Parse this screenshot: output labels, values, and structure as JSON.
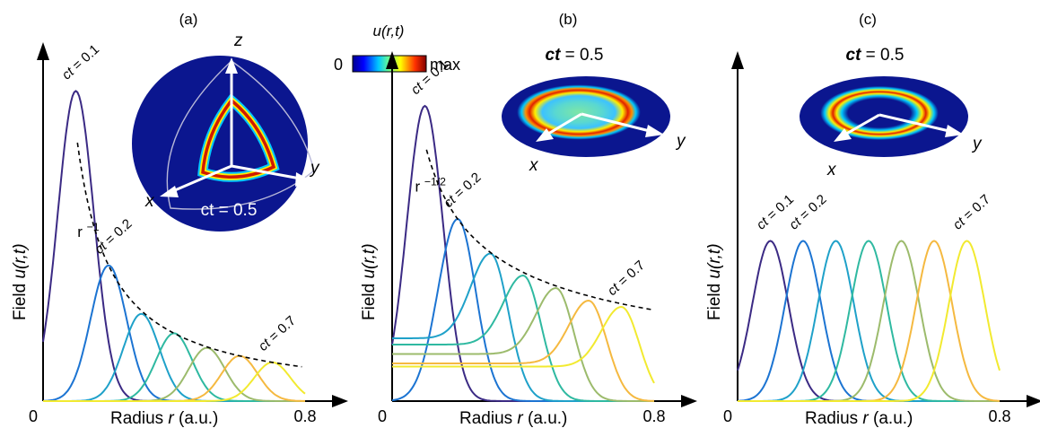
{
  "colors": {
    "ct01": "#3b2a84",
    "ct02": "#1c74d2",
    "ct03": "#1fa1c9",
    "ct04": "#2fb9a1",
    "ct05": "#9cbb6c",
    "ct06": "#f5b940",
    "ct07": "#f2ea30",
    "envelope": "#000000",
    "disk_bg": "#0b168f"
  },
  "colorbar": {
    "title": "u(r,t)",
    "min_label": "0",
    "max_label": "max"
  },
  "chart_data": [
    {
      "panel_label": "(a)",
      "type": "line",
      "xlabel_prefix": "Radius ",
      "xlabel_var": "r",
      "xlabel_suffix": " (a.u.)",
      "ylabel_prefix": "Field ",
      "ylabel_var": "u(r,t)",
      "x_tick_labels": [
        "0",
        "0.8"
      ],
      "xlim": [
        0,
        0.8
      ],
      "ylim": [
        0,
        1.0
      ],
      "series": [
        {
          "ct": 0.1,
          "label": "ct = 0.1",
          "amplitude": 0.96,
          "floor": 0.0
        },
        {
          "ct": 0.2,
          "label": "ct = 0.2",
          "amplitude": 0.42,
          "floor": 0.0
        },
        {
          "ct": 0.3,
          "amplitude": 0.27,
          "floor": 0.0
        },
        {
          "ct": 0.4,
          "amplitude": 0.21,
          "floor": 0.0
        },
        {
          "ct": 0.5,
          "amplitude": 0.165,
          "floor": 0.0
        },
        {
          "ct": 0.6,
          "amplitude": 0.14,
          "floor": 0.0
        },
        {
          "ct": 0.7,
          "label": "ct = 0.7",
          "amplitude": 0.12,
          "floor": 0.0
        }
      ],
      "envelope": {
        "label": "r",
        "exponent": "−1"
      },
      "inset": {
        "type": "sphere",
        "caption": "ct = 0.5",
        "axes": [
          "x",
          "y",
          "z"
        ]
      }
    },
    {
      "panel_label": "(b)",
      "type": "line",
      "xlabel_prefix": "Radius ",
      "xlabel_var": "r",
      "xlabel_suffix": " (a.u.)",
      "ylabel_prefix": "Field ",
      "ylabel_var": "u(r,t)",
      "x_tick_labels": [
        "0",
        "0.8"
      ],
      "xlim": [
        0,
        0.8
      ],
      "ylim": [
        0,
        1.0
      ],
      "series": [
        {
          "ct": 0.1,
          "label": "ct = 0.1",
          "amplitude": 0.94,
          "floor": 0.0
        },
        {
          "ct": 0.2,
          "label": "ct = 0.2",
          "amplitude": 0.58,
          "floor": 0.0
        },
        {
          "ct": 0.3,
          "amplitude": 0.47,
          "floor": 0.2
        },
        {
          "ct": 0.4,
          "amplitude": 0.4,
          "floor": 0.18
        },
        {
          "ct": 0.5,
          "amplitude": 0.36,
          "floor": 0.15
        },
        {
          "ct": 0.6,
          "amplitude": 0.32,
          "floor": 0.12
        },
        {
          "ct": 0.7,
          "label": "ct = 0.7",
          "amplitude": 0.3,
          "floor": 0.11
        }
      ],
      "envelope": {
        "label": "r",
        "exponent": "−1/2"
      },
      "inset": {
        "type": "disk",
        "caption": "ct = 0.5",
        "axes": [
          "x",
          "y"
        ]
      }
    },
    {
      "panel_label": "(c)",
      "type": "line",
      "xlabel_prefix": "Radius ",
      "xlabel_var": "r",
      "xlabel_suffix": " (a.u.)",
      "ylabel_prefix": "Field ",
      "ylabel_var": "u(r,t)",
      "x_tick_labels": [
        "0",
        "0.8"
      ],
      "xlim": [
        0,
        0.8
      ],
      "ylim": [
        0,
        1.0
      ],
      "series": [
        {
          "ct": 0.1,
          "label": "ct = 0.1",
          "amplitude": 0.51,
          "floor": 0.0
        },
        {
          "ct": 0.2,
          "label": "ct = 0.2",
          "amplitude": 0.51,
          "floor": 0.0
        },
        {
          "ct": 0.3,
          "amplitude": 0.51,
          "floor": 0.0
        },
        {
          "ct": 0.4,
          "amplitude": 0.51,
          "floor": 0.0
        },
        {
          "ct": 0.5,
          "amplitude": 0.51,
          "floor": 0.0
        },
        {
          "ct": 0.6,
          "amplitude": 0.51,
          "floor": 0.0
        },
        {
          "ct": 0.7,
          "label": "ct = 0.7",
          "amplitude": 0.51,
          "floor": 0.0
        }
      ],
      "inset": {
        "type": "disk",
        "caption": "ct = 0.5",
        "axes": [
          "x",
          "y"
        ]
      }
    }
  ]
}
